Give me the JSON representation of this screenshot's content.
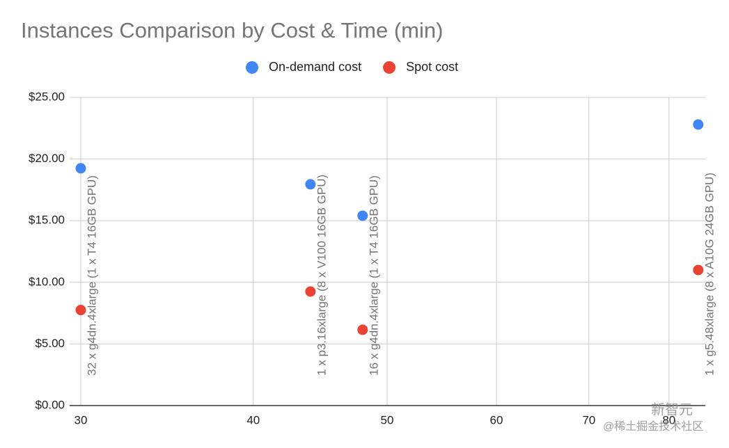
{
  "chart_data": {
    "type": "scatter",
    "title": "Instances Comparison by Cost & Time (min)",
    "x": [
      30,
      44,
      48,
      84
    ],
    "series": [
      {
        "name": "On-demand cost",
        "color": "#4285f4",
        "values": [
          19.25,
          17.95,
          15.4,
          22.8
        ]
      },
      {
        "name": "Spot cost",
        "color": "#ea4335",
        "values": [
          7.75,
          9.25,
          6.15,
          11.0
        ]
      }
    ],
    "annotations": [
      "32 x g4dn.4xlarge (1 x T4 16GB GPU)",
      "1 x p3.16xlarge (8 x V100 16GB GPU)",
      "16 x g4dn.4xlarge (1 x T4 16GB GPU)",
      "1 x g5.48xlarge (8 x A10G 24GB GPU)"
    ],
    "xlim": [
      30,
      85
    ],
    "xticks": [
      30,
      40,
      50,
      60,
      70,
      80
    ],
    "xscale": "log",
    "ylim": [
      0,
      25
    ],
    "yticks": [
      {
        "value": 0,
        "label": "$0.00"
      },
      {
        "value": 5,
        "label": "$5.00"
      },
      {
        "value": 10,
        "label": "$10.00"
      },
      {
        "value": 15,
        "label": "$15.00"
      },
      {
        "value": 20,
        "label": "$20.00"
      },
      {
        "value": 25,
        "label": "$25.00"
      }
    ],
    "grid": true,
    "legend": "top",
    "watermark": [
      "新智元",
      "@稀土掘金技术社区"
    ]
  }
}
